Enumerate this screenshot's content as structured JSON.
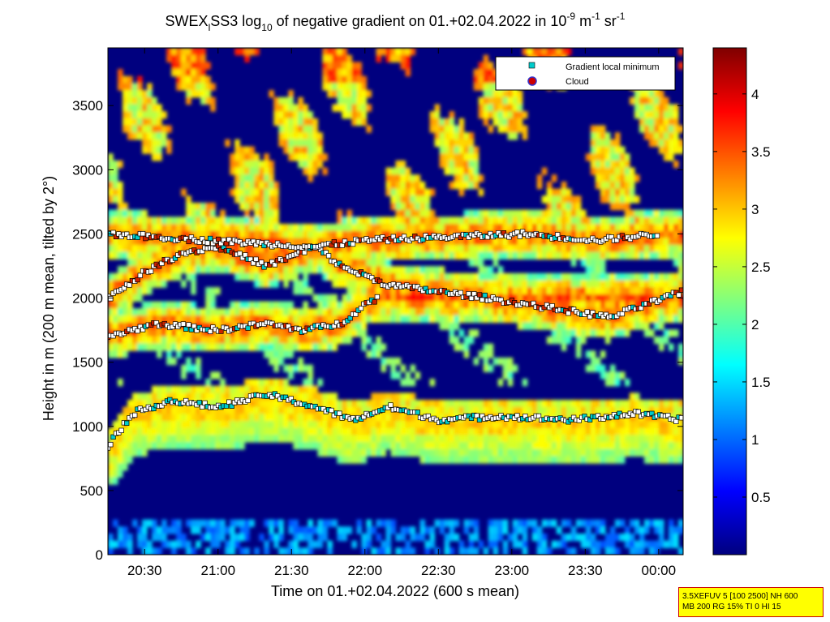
{
  "chart_data": {
    "type": "heatmap",
    "title_parts": {
      "a": "SWEX",
      "a_sub": "l",
      "b": "SS3 log",
      "b_sub": "10",
      "c": " of negative gradient on 01.+02.04.2022 in 10",
      "c_sup": "-9",
      "d": " m",
      "d_sup": "-1",
      "e": " sr",
      "e_sup": "-1"
    },
    "xlabel": "Time on 01.+02.04.2022 (600 s mean)",
    "ylabel": "Height in m (200 m mean, tilted by 2°)",
    "x_range": [
      "20:15",
      "00:10"
    ],
    "x_ticks": [
      "20:30",
      "21:00",
      "21:30",
      "22:00",
      "22:30",
      "23:00",
      "23:30",
      "00:00"
    ],
    "x_tick_minutes": [
      30,
      60,
      90,
      120,
      150,
      180,
      210,
      240
    ],
    "x_min_minutes": 15,
    "x_max_minutes": 250,
    "ylim": [
      0,
      3950
    ],
    "y_ticks": [
      "0",
      "500",
      "1000",
      "1500",
      "2000",
      "2500",
      "3000",
      "3500"
    ],
    "y_tick_values": [
      0,
      500,
      1000,
      1500,
      2000,
      2500,
      3000,
      3500
    ],
    "colorbar": {
      "range": [
        0,
        4.4
      ],
      "ticks": [
        "0.5",
        "1",
        "1.5",
        "2",
        "2.5",
        "3",
        "3.5",
        "4"
      ],
      "tick_values": [
        0.5,
        1,
        1.5,
        2,
        2.5,
        3,
        3.5,
        4
      ],
      "colormap": "jet"
    },
    "legend": [
      {
        "label": "Gradient local minimum",
        "marker": "square",
        "color": "#00cccc"
      },
      {
        "label": "Cloud",
        "marker": "circle",
        "color": "#cc0000"
      }
    ],
    "legend_position": "top-right",
    "layers": [
      {
        "height_m": [
          850,
          1100,
          1200,
          1150,
          1250,
          1150,
          1050,
          1150,
          1050,
          1080,
          1050,
          1100,
          1050
        ],
        "time_min": [
          15,
          25,
          40,
          60,
          80,
          100,
          115,
          130,
          150,
          175,
          205,
          230,
          250
        ]
      },
      {
        "height_m": [
          1700,
          1800,
          1750,
          1800,
          1750,
          1800,
          1950,
          2000
        ],
        "time_min": [
          15,
          35,
          60,
          80,
          95,
          110,
          120,
          125
        ]
      },
      {
        "height_m": [
          2000,
          2200,
          2350,
          2400,
          2250,
          2400,
          2250,
          2100,
          2050,
          2000,
          1850,
          2050
        ],
        "time_min": [
          15,
          30,
          45,
          60,
          80,
          100,
          110,
          130,
          150,
          170,
          220,
          250
        ]
      },
      {
        "height_m": [
          2500,
          2450,
          2400,
          2450,
          2500,
          2450,
          2500
        ],
        "time_min": [
          15,
          55,
          100,
          120,
          185,
          215,
          240
        ]
      }
    ]
  },
  "info_box": {
    "line1": "3.5XEFUV 5 [100 2500] NH 600",
    "line2": "MB 200 RG 15% TI 0 HI 15"
  }
}
